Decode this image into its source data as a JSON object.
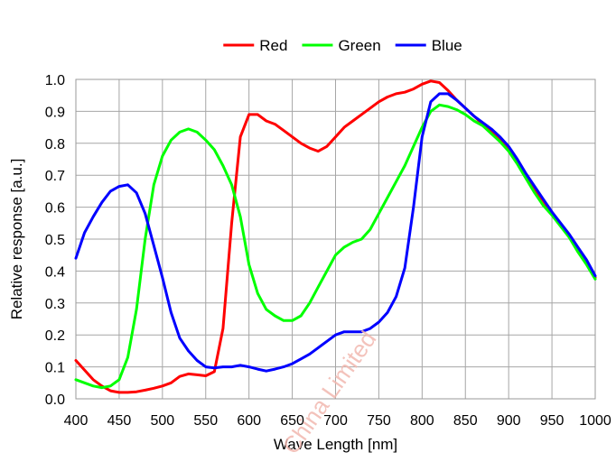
{
  "chart_data": {
    "type": "line",
    "title": "",
    "xlabel": "Wave Length [nm]",
    "ylabel": "Relative response [a.u.]",
    "xlim": [
      400,
      1000
    ],
    "ylim": [
      0.0,
      1.0
    ],
    "xticks": [
      "400",
      "450",
      "500",
      "550",
      "600",
      "650",
      "700",
      "750",
      "800",
      "850",
      "900",
      "950",
      "1000"
    ],
    "yticks": [
      "0.0",
      "0.1",
      "0.2",
      "0.3",
      "0.4",
      "0.5",
      "0.6",
      "0.7",
      "0.8",
      "0.9",
      "1.0"
    ],
    "grid": true,
    "legend_position": "top-center",
    "watermark": "China Limited",
    "series": [
      {
        "name": "Red",
        "color": "#ff0000",
        "points": [
          [
            400,
            0.12
          ],
          [
            410,
            0.09
          ],
          [
            420,
            0.06
          ],
          [
            430,
            0.04
          ],
          [
            440,
            0.025
          ],
          [
            450,
            0.02
          ],
          [
            460,
            0.02
          ],
          [
            470,
            0.022
          ],
          [
            480,
            0.027
          ],
          [
            490,
            0.033
          ],
          [
            500,
            0.04
          ],
          [
            510,
            0.05
          ],
          [
            520,
            0.07
          ],
          [
            530,
            0.078
          ],
          [
            540,
            0.075
          ],
          [
            550,
            0.072
          ],
          [
            560,
            0.085
          ],
          [
            570,
            0.22
          ],
          [
            580,
            0.55
          ],
          [
            590,
            0.82
          ],
          [
            600,
            0.89
          ],
          [
            610,
            0.89
          ],
          [
            620,
            0.87
          ],
          [
            630,
            0.86
          ],
          [
            640,
            0.84
          ],
          [
            650,
            0.82
          ],
          [
            660,
            0.8
          ],
          [
            670,
            0.785
          ],
          [
            680,
            0.775
          ],
          [
            690,
            0.79
          ],
          [
            700,
            0.82
          ],
          [
            710,
            0.85
          ],
          [
            720,
            0.87
          ],
          [
            730,
            0.89
          ],
          [
            740,
            0.91
          ],
          [
            750,
            0.93
          ],
          [
            760,
            0.945
          ],
          [
            770,
            0.955
          ],
          [
            780,
            0.96
          ],
          [
            790,
            0.97
          ],
          [
            800,
            0.985
          ],
          [
            810,
            0.995
          ],
          [
            820,
            0.99
          ],
          [
            830,
            0.965
          ],
          [
            840,
            0.935
          ],
          [
            850,
            0.91
          ],
          [
            860,
            0.885
          ],
          [
            870,
            0.86
          ],
          [
            880,
            0.84
          ],
          [
            890,
            0.81
          ],
          [
            900,
            0.78
          ],
          [
            910,
            0.745
          ],
          [
            920,
            0.7
          ],
          [
            930,
            0.655
          ],
          [
            940,
            0.62
          ],
          [
            950,
            0.58
          ],
          [
            960,
            0.545
          ],
          [
            970,
            0.51
          ],
          [
            980,
            0.465
          ],
          [
            990,
            0.43
          ],
          [
            1000,
            0.38
          ]
        ]
      },
      {
        "name": "Green",
        "color": "#00ff00",
        "points": [
          [
            400,
            0.06
          ],
          [
            410,
            0.05
          ],
          [
            420,
            0.04
          ],
          [
            430,
            0.035
          ],
          [
            440,
            0.04
          ],
          [
            450,
            0.06
          ],
          [
            460,
            0.13
          ],
          [
            470,
            0.28
          ],
          [
            480,
            0.5
          ],
          [
            490,
            0.67
          ],
          [
            500,
            0.76
          ],
          [
            510,
            0.81
          ],
          [
            520,
            0.835
          ],
          [
            530,
            0.845
          ],
          [
            540,
            0.835
          ],
          [
            550,
            0.81
          ],
          [
            560,
            0.78
          ],
          [
            570,
            0.73
          ],
          [
            580,
            0.67
          ],
          [
            590,
            0.57
          ],
          [
            600,
            0.42
          ],
          [
            610,
            0.33
          ],
          [
            620,
            0.28
          ],
          [
            630,
            0.26
          ],
          [
            640,
            0.245
          ],
          [
            650,
            0.245
          ],
          [
            660,
            0.26
          ],
          [
            670,
            0.3
          ],
          [
            680,
            0.35
          ],
          [
            690,
            0.4
          ],
          [
            700,
            0.45
          ],
          [
            710,
            0.475
          ],
          [
            720,
            0.49
          ],
          [
            730,
            0.5
          ],
          [
            740,
            0.53
          ],
          [
            750,
            0.58
          ],
          [
            760,
            0.63
          ],
          [
            770,
            0.68
          ],
          [
            780,
            0.73
          ],
          [
            790,
            0.79
          ],
          [
            800,
            0.85
          ],
          [
            810,
            0.9
          ],
          [
            820,
            0.92
          ],
          [
            830,
            0.915
          ],
          [
            840,
            0.905
          ],
          [
            850,
            0.89
          ],
          [
            860,
            0.87
          ],
          [
            870,
            0.855
          ],
          [
            880,
            0.83
          ],
          [
            890,
            0.805
          ],
          [
            900,
            0.775
          ],
          [
            910,
            0.735
          ],
          [
            920,
            0.69
          ],
          [
            930,
            0.645
          ],
          [
            940,
            0.605
          ],
          [
            950,
            0.575
          ],
          [
            960,
            0.54
          ],
          [
            970,
            0.505
          ],
          [
            980,
            0.46
          ],
          [
            990,
            0.42
          ],
          [
            1000,
            0.375
          ]
        ]
      },
      {
        "name": "Blue",
        "color": "#0000ff",
        "points": [
          [
            400,
            0.44
          ],
          [
            410,
            0.52
          ],
          [
            420,
            0.57
          ],
          [
            430,
            0.615
          ],
          [
            440,
            0.65
          ],
          [
            450,
            0.665
          ],
          [
            460,
            0.67
          ],
          [
            470,
            0.645
          ],
          [
            480,
            0.58
          ],
          [
            490,
            0.48
          ],
          [
            500,
            0.38
          ],
          [
            510,
            0.27
          ],
          [
            520,
            0.19
          ],
          [
            530,
            0.15
          ],
          [
            540,
            0.12
          ],
          [
            550,
            0.1
          ],
          [
            560,
            0.097
          ],
          [
            570,
            0.1
          ],
          [
            580,
            0.1
          ],
          [
            590,
            0.105
          ],
          [
            600,
            0.1
          ],
          [
            610,
            0.093
          ],
          [
            620,
            0.087
          ],
          [
            630,
            0.093
          ],
          [
            640,
            0.1
          ],
          [
            650,
            0.11
          ],
          [
            660,
            0.125
          ],
          [
            670,
            0.14
          ],
          [
            680,
            0.16
          ],
          [
            690,
            0.18
          ],
          [
            700,
            0.2
          ],
          [
            710,
            0.21
          ],
          [
            720,
            0.21
          ],
          [
            730,
            0.21
          ],
          [
            740,
            0.22
          ],
          [
            750,
            0.24
          ],
          [
            760,
            0.27
          ],
          [
            770,
            0.32
          ],
          [
            780,
            0.41
          ],
          [
            790,
            0.6
          ],
          [
            800,
            0.82
          ],
          [
            810,
            0.93
          ],
          [
            820,
            0.955
          ],
          [
            830,
            0.955
          ],
          [
            840,
            0.935
          ],
          [
            850,
            0.91
          ],
          [
            860,
            0.885
          ],
          [
            870,
            0.865
          ],
          [
            880,
            0.845
          ],
          [
            890,
            0.82
          ],
          [
            900,
            0.79
          ],
          [
            910,
            0.75
          ],
          [
            920,
            0.705
          ],
          [
            930,
            0.665
          ],
          [
            940,
            0.625
          ],
          [
            950,
            0.585
          ],
          [
            960,
            0.55
          ],
          [
            970,
            0.515
          ],
          [
            980,
            0.475
          ],
          [
            990,
            0.435
          ],
          [
            1000,
            0.385
          ]
        ]
      }
    ]
  }
}
